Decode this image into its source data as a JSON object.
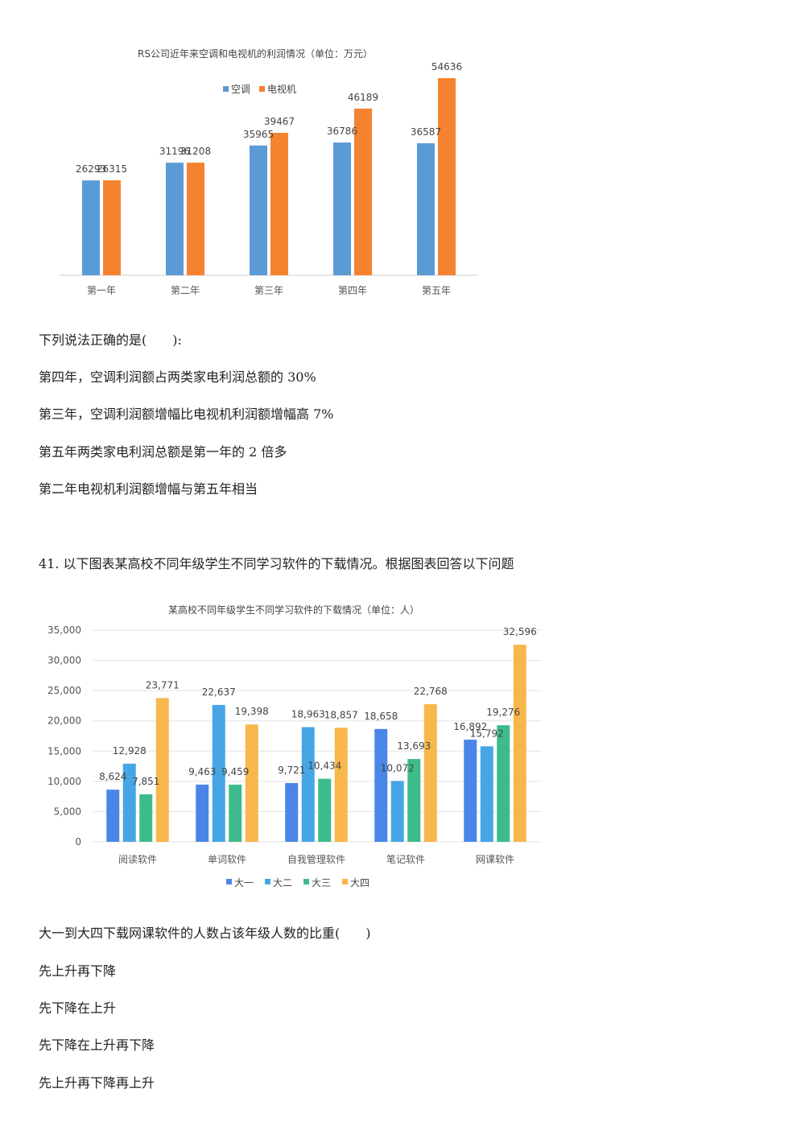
{
  "chart_data": [
    {
      "type": "bar",
      "title": "RS公司近年来空调和电视机的利润情况（单位：万元）",
      "categories": [
        "第一年",
        "第二年",
        "第三年",
        "第四年",
        "第五年"
      ],
      "series": [
        {
          "name": "空调",
          "color": "#5b9bd5",
          "values": [
            26293,
            31196,
            35965,
            36786,
            36587
          ]
        },
        {
          "name": "电视机",
          "color": "#f5822f",
          "values": [
            26315,
            31208,
            39467,
            46189,
            54636
          ]
        }
      ],
      "ylim": [
        0,
        58000
      ],
      "grid": false,
      "legend_position": "top"
    },
    {
      "type": "bar",
      "title": "某高校不同年级学生不同学习软件的下载情况（单位：人）",
      "categories": [
        "阅读软件",
        "单词软件",
        "自我管理软件",
        "笔记软件",
        "网课软件"
      ],
      "series": [
        {
          "name": "大一",
          "color": "#4a86e8",
          "values": [
            8624,
            9463,
            9721,
            18658,
            16892
          ]
        },
        {
          "name": "大二",
          "color": "#46a6e5",
          "values": [
            12928,
            22637,
            18963,
            10072,
            15792
          ]
        },
        {
          "name": "大三",
          "color": "#3dbb8a",
          "values": [
            7851,
            9459,
            10434,
            13693,
            19276
          ]
        },
        {
          "name": "大四",
          "color": "#f8b74a",
          "values": [
            23771,
            19398,
            18857,
            22768,
            32596
          ]
        }
      ],
      "yticks": [
        "0",
        "5,000",
        "10,000",
        "15,000",
        "20,000",
        "25,000",
        "30,000",
        "35,000"
      ],
      "value_labels": [
        [
          "8,624",
          "9,463",
          "9,721",
          "18,658",
          "16,892"
        ],
        [
          "12,928",
          "22,637",
          "18,963",
          "10,072",
          "15,792"
        ],
        [
          "7,851",
          "9,459",
          "10,434",
          "13,693",
          "19,276"
        ],
        [
          "23,771",
          "19,398",
          "18,857",
          "22,768",
          "32,596"
        ]
      ],
      "ylim": [
        0,
        35000
      ],
      "grid": true,
      "legend_position": "bottom"
    }
  ],
  "question1": {
    "prompt": "下列说法正确的是(　　):",
    "options": [
      "第四年，空调利润额占两类家电利润总额的 30%",
      "第三年，空调利润额增幅比电视机利润额增幅高 7%",
      "第五年两类家电利润总额是第一年的 2 倍多",
      "第二年电视机利润额增幅与第五年相当"
    ]
  },
  "question2": {
    "heading": "41. 以下图表某高校不同年级学生不同学习软件的下载情况。根据图表回答以下问题",
    "prompt": "大一到大四下载网课软件的人数占该年级人数的比重(　　)",
    "options": [
      "先上升再下降",
      "先下降在上升",
      "先下降在上升再下降",
      "先上升再下降再上升"
    ]
  }
}
